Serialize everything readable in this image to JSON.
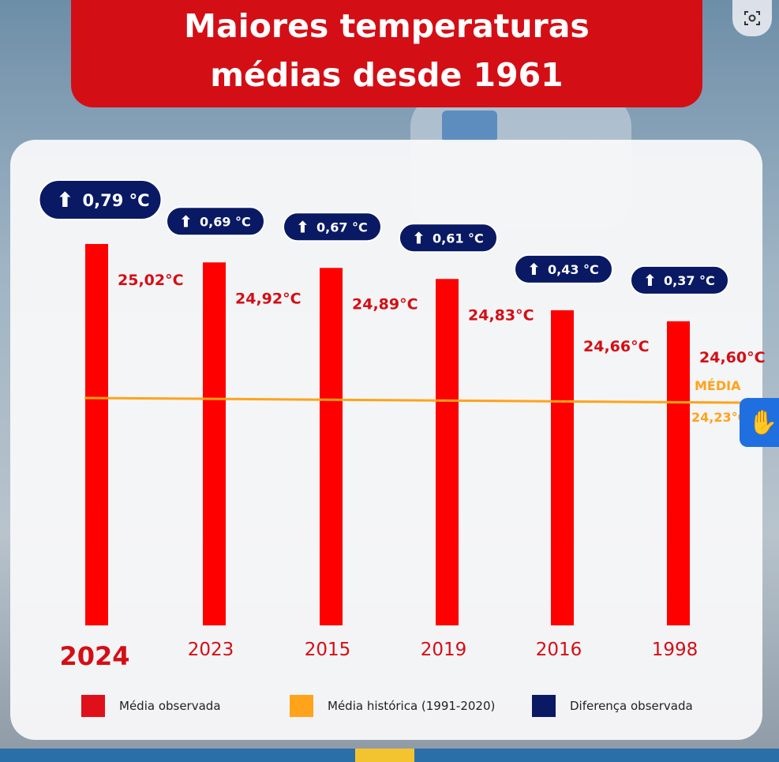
{
  "title_line1": "Maiores temperaturas",
  "title_line2": "médias desde 1961",
  "colors": {
    "bar": "#ff0000",
    "average": "#ffa31a",
    "difference": "#0a1963",
    "title_bg": "#d40e15",
    "value_text": "#d40e15"
  },
  "average": {
    "label": "MÉDIA",
    "value_label": "24,23°C",
    "value": 24.23
  },
  "legend": [
    {
      "label": "Média observada",
      "color": "#e0101a"
    },
    {
      "label": "Média histórica (1991-2020)",
      "color": "#ffa31a"
    },
    {
      "label": "Diferença observada",
      "color": "#0a1963"
    }
  ],
  "chart_data": {
    "type": "bar",
    "title": "Maiores temperaturas médias desde 1961",
    "categories": [
      "2024",
      "2023",
      "2015",
      "2019",
      "2016",
      "1998"
    ],
    "values": [
      25.02,
      24.92,
      24.89,
      24.83,
      24.66,
      24.6
    ],
    "value_labels": [
      "25,02°C",
      "24,92°C",
      "24,89°C",
      "24,83°C",
      "24,66°C",
      "24,60°C"
    ],
    "differences": [
      0.79,
      0.69,
      0.67,
      0.61,
      0.43,
      0.37
    ],
    "difference_labels": [
      "0,79 °C",
      "0,69 °C",
      "0,67 °C",
      "0,61 °C",
      "0,43 °C",
      "0,37 °C"
    ],
    "reference_line": 24.23,
    "highlight": "2024",
    "legend_position": "bottom"
  }
}
